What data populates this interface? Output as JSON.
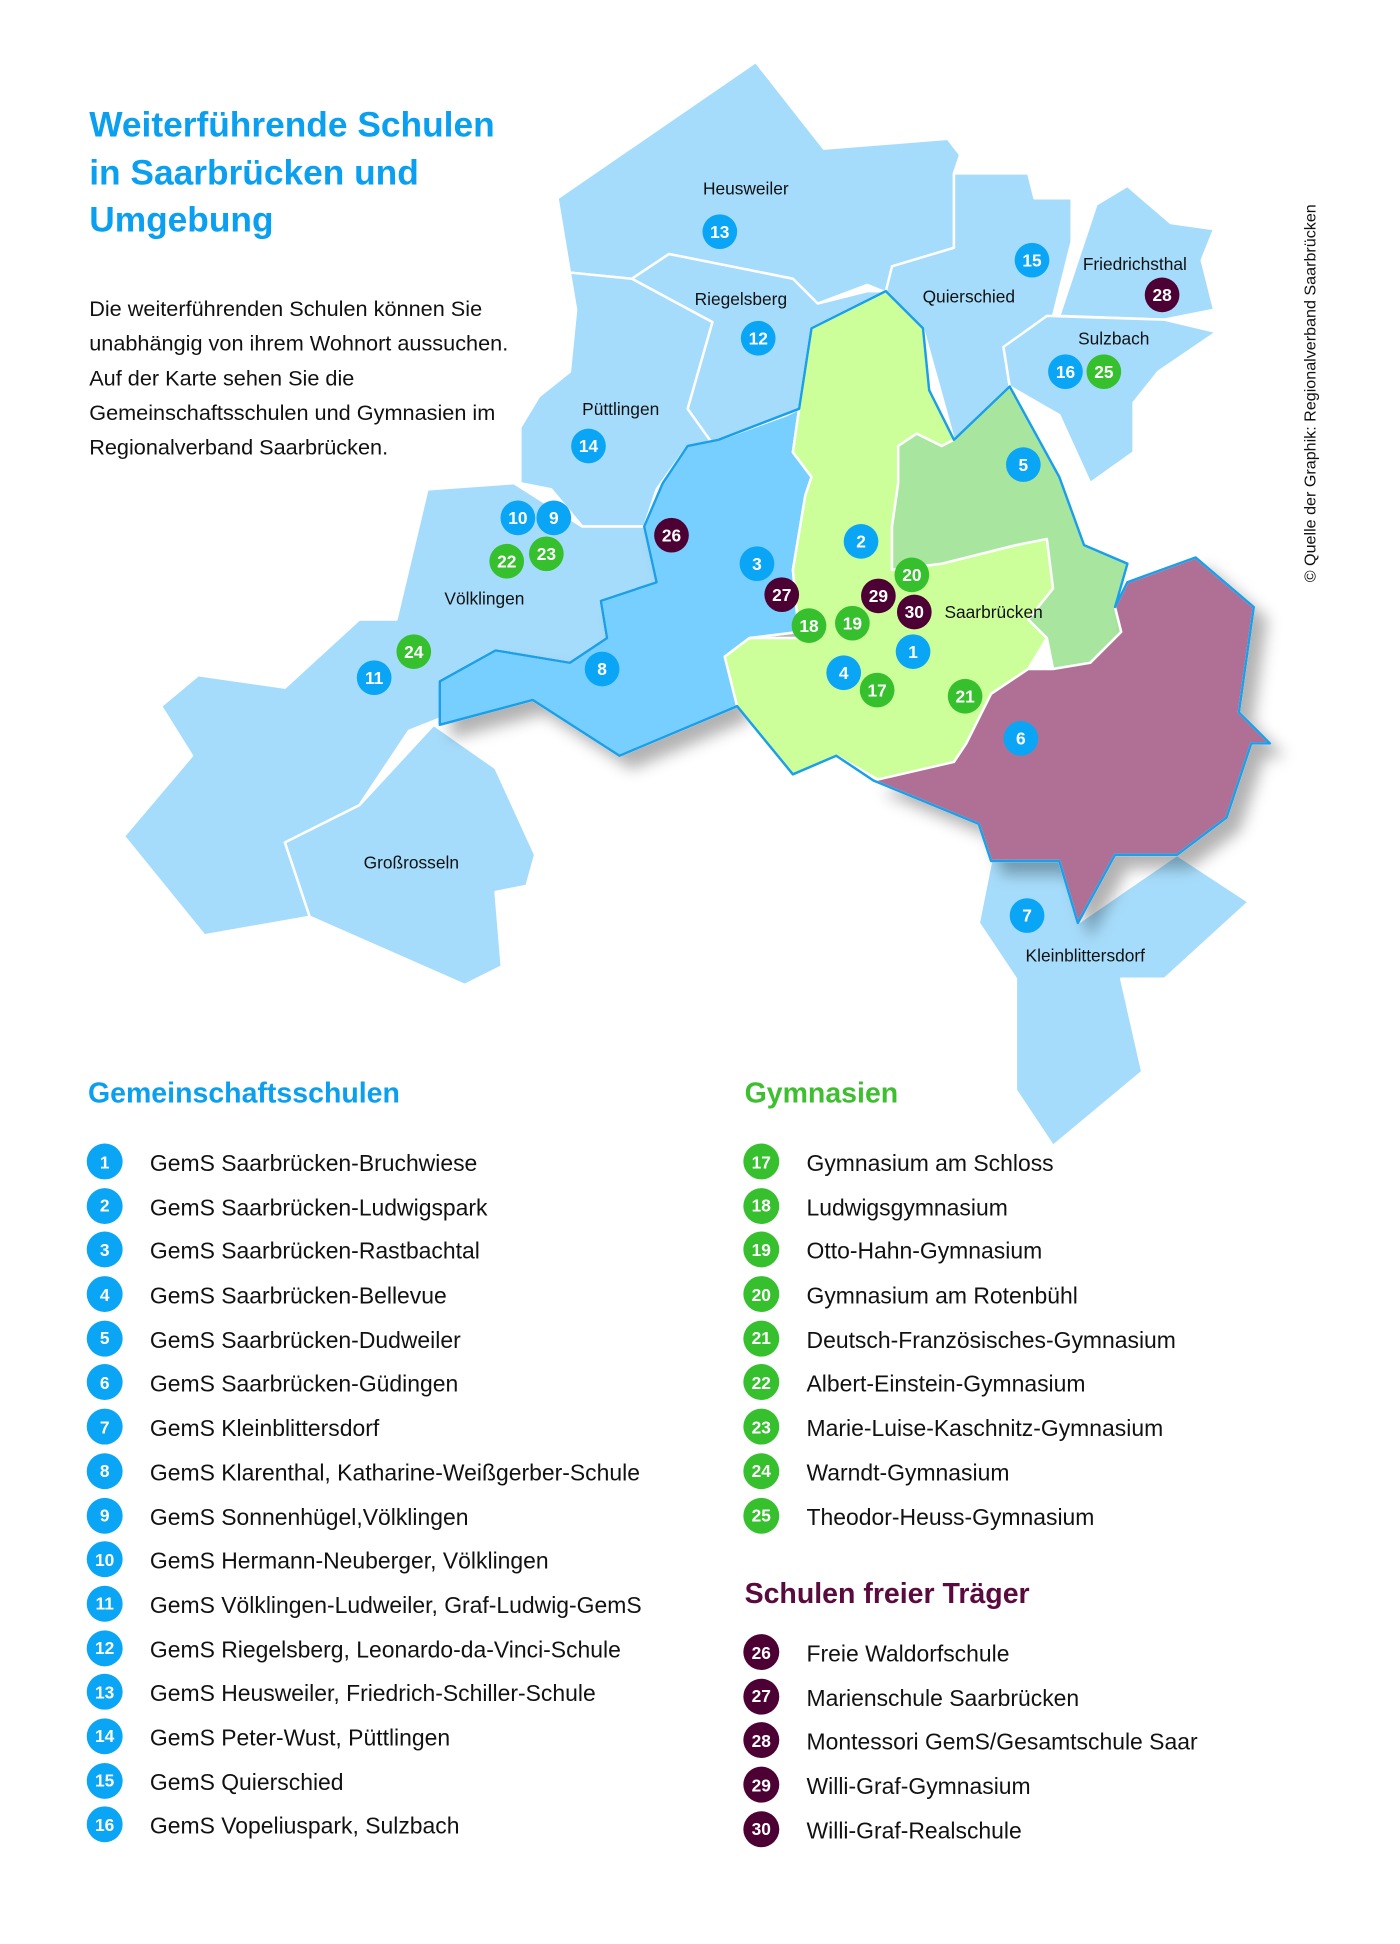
{
  "title_lines": [
    "Weiterführende Schulen",
    "in Saarbrücken und",
    "Umgebung"
  ],
  "intro": "Die weiterführenden Schulen können Sie unabhängig von ihrem Wohnort aussuchen. Auf der Karte sehen Sie die Gemeinschaftsschulen und Gymnasien im Regionalverband Saarbrücken.",
  "credit": "© Quelle der Graphik: Regionalverband Saarbrücken",
  "colors": {
    "gems": "#0aa5f5",
    "gym": "#36c02e",
    "frei": "#4d0033",
    "title": "#0a9fef",
    "frei_heading": "#5a0a3c"
  },
  "map_labels": [
    "Heusweiler",
    "Riegelsberg",
    "Quierschied",
    "Friedrichsthal",
    "Sulzbach",
    "Püttlingen",
    "Völklingen",
    "Saarbrücken",
    "Großrosseln",
    "Kleinblittersdorf"
  ],
  "sections": {
    "gems": {
      "title": "Gemeinschaftsschulen",
      "items": [
        {
          "n": "1",
          "name": "GemS Saarbrücken-Bruchwiese"
        },
        {
          "n": "2",
          "name": "GemS Saarbrücken-Ludwigspark"
        },
        {
          "n": "3",
          "name": "GemS Saarbrücken-Rastbachtal"
        },
        {
          "n": "4",
          "name": "GemS Saarbrücken-Bellevue"
        },
        {
          "n": "5",
          "name": "GemS Saarbrücken-Dudweiler"
        },
        {
          "n": "6",
          "name": "GemS Saarbrücken-Güdingen"
        },
        {
          "n": "7",
          "name": "GemS Kleinblittersdorf"
        },
        {
          "n": "8",
          "name": "GemS Klarenthal, Katharine-Weißgerber-Schule"
        },
        {
          "n": "9",
          "name": "GemS Sonnenhügel,Völklingen"
        },
        {
          "n": "10",
          "name": "GemS Hermann-Neuberger, Völklingen"
        },
        {
          "n": "11",
          "name": "GemS Völklingen-Ludweiler, Graf-Ludwig-GemS"
        },
        {
          "n": "12",
          "name": "GemS Riegelsberg, Leonardo-da-Vinci-Schule"
        },
        {
          "n": "13",
          "name": "GemS Heusweiler, Friedrich-Schiller-Schule"
        },
        {
          "n": "14",
          "name": "GemS Peter-Wust, Püttlingen"
        },
        {
          "n": "15",
          "name": "GemS Quierschied"
        },
        {
          "n": "16",
          "name": "GemS Vopeliuspark, Sulzbach"
        }
      ]
    },
    "gym": {
      "title": "Gymnasien",
      "items": [
        {
          "n": "17",
          "name": "Gymnasium am Schloss"
        },
        {
          "n": "18",
          "name": "Ludwigsgymnasium"
        },
        {
          "n": "19",
          "name": "Otto-Hahn-Gymnasium"
        },
        {
          "n": "20",
          "name": "Gymnasium am Rotenbühl"
        },
        {
          "n": "21",
          "name": "Deutsch-Französisches-Gymnasium"
        },
        {
          "n": "22",
          "name": "Albert-Einstein-Gymnasium"
        },
        {
          "n": "23",
          "name": "Marie-Luise-Kaschnitz-Gymnasium"
        },
        {
          "n": "24",
          "name": "Warndt-Gymnasium"
        },
        {
          "n": "25",
          "name": "Theodor-Heuss-Gymnasium"
        }
      ]
    },
    "frei": {
      "title": "Schulen freier Träger",
      "items": [
        {
          "n": "26",
          "name": "Freie Waldorfschule"
        },
        {
          "n": "27",
          "name": "Marienschule Saarbrücken"
        },
        {
          "n": "28",
          "name": "Montessori GemS/Gesamtschule Saar"
        },
        {
          "n": "29",
          "name": "Willi-Graf-Gymnasium"
        },
        {
          "n": "30",
          "name": "Willi-Graf-Realschule"
        }
      ]
    }
  }
}
